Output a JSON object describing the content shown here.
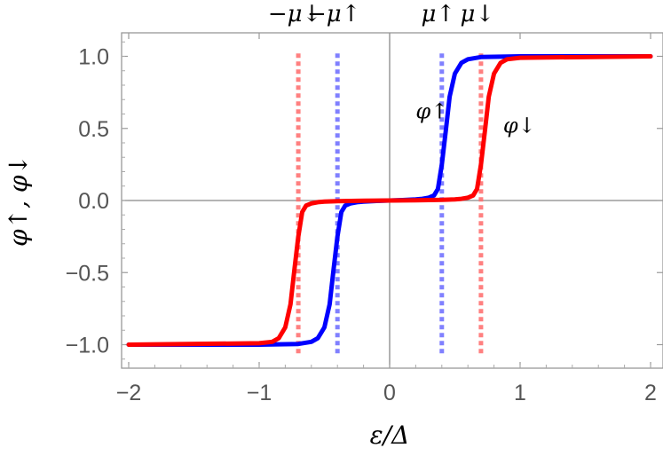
{
  "chart_data": {
    "type": "line",
    "xlabel": "ε/Δ",
    "ylabel": "φ↑, φ↓",
    "xlim": [
      -2.02,
      2.02
    ],
    "ylim": [
      -1.16,
      1.16
    ],
    "x_ticks": [
      -2,
      -1,
      0,
      1,
      2
    ],
    "x_tick_labels": [
      "−2",
      "−1",
      "0",
      "1",
      "2"
    ],
    "y_ticks": [
      -1.0,
      -0.5,
      0.0,
      0.5,
      1.0
    ],
    "y_tick_labels": [
      "−1.0",
      "−0.5",
      "0.0",
      "0.5",
      "1.0"
    ],
    "grid": false,
    "frame": true,
    "series": [
      {
        "label": "φ↑",
        "color": "#0000ff",
        "x": [
          -2.0,
          -1.0,
          -0.7,
          -0.6,
          -0.55,
          -0.5,
          -0.46,
          -0.43,
          -0.4,
          -0.37,
          -0.34,
          -0.3,
          -0.25,
          -0.2,
          -0.1,
          0.0,
          0.1,
          0.2,
          0.25,
          0.3,
          0.34,
          0.37,
          0.4,
          0.43,
          0.46,
          0.5,
          0.55,
          0.6,
          0.7,
          1.0,
          2.0
        ],
        "y": [
          -1.0,
          -1.0,
          -0.995,
          -0.98,
          -0.955,
          -0.88,
          -0.72,
          -0.48,
          -0.25,
          -0.08,
          -0.035,
          -0.02,
          -0.012,
          -0.008,
          -0.003,
          0.0,
          0.003,
          0.008,
          0.012,
          0.02,
          0.035,
          0.08,
          0.25,
          0.48,
          0.72,
          0.88,
          0.955,
          0.98,
          0.995,
          1.0,
          1.0
        ]
      },
      {
        "label": "φ↓",
        "color": "#ff0000",
        "x": [
          -2.0,
          -1.0,
          -0.9,
          -0.85,
          -0.8,
          -0.76,
          -0.73,
          -0.7,
          -0.67,
          -0.64,
          -0.6,
          -0.55,
          -0.5,
          -0.4,
          -0.2,
          0.0,
          0.2,
          0.4,
          0.5,
          0.55,
          0.6,
          0.64,
          0.67,
          0.7,
          0.73,
          0.76,
          0.8,
          0.85,
          0.9,
          1.0,
          2.0
        ],
        "y": [
          -1.0,
          -0.99,
          -0.98,
          -0.955,
          -0.88,
          -0.72,
          -0.48,
          -0.25,
          -0.08,
          -0.035,
          -0.02,
          -0.012,
          -0.008,
          -0.004,
          -0.002,
          0.0,
          0.002,
          0.004,
          0.008,
          0.012,
          0.02,
          0.035,
          0.08,
          0.25,
          0.48,
          0.72,
          0.88,
          0.955,
          0.98,
          0.99,
          1.0
        ]
      }
    ],
    "vertical_lines": [
      {
        "x": -0.7,
        "color": "#ff6b6b",
        "label": "−μ↓",
        "style": "dotted"
      },
      {
        "x": -0.4,
        "color": "#6b6bff",
        "label": "−μ↑",
        "style": "dotted"
      },
      {
        "x": 0.4,
        "color": "#6b6bff",
        "label": "μ↑",
        "style": "dotted"
      },
      {
        "x": 0.7,
        "color": "#ff6b6b",
        "label": "μ↓",
        "style": "dotted"
      }
    ],
    "curve_annotations": [
      {
        "text": "φ↑",
        "x": 0.2,
        "y": 0.57
      },
      {
        "text": "φ↓",
        "x": 0.87,
        "y": 0.47
      }
    ]
  }
}
